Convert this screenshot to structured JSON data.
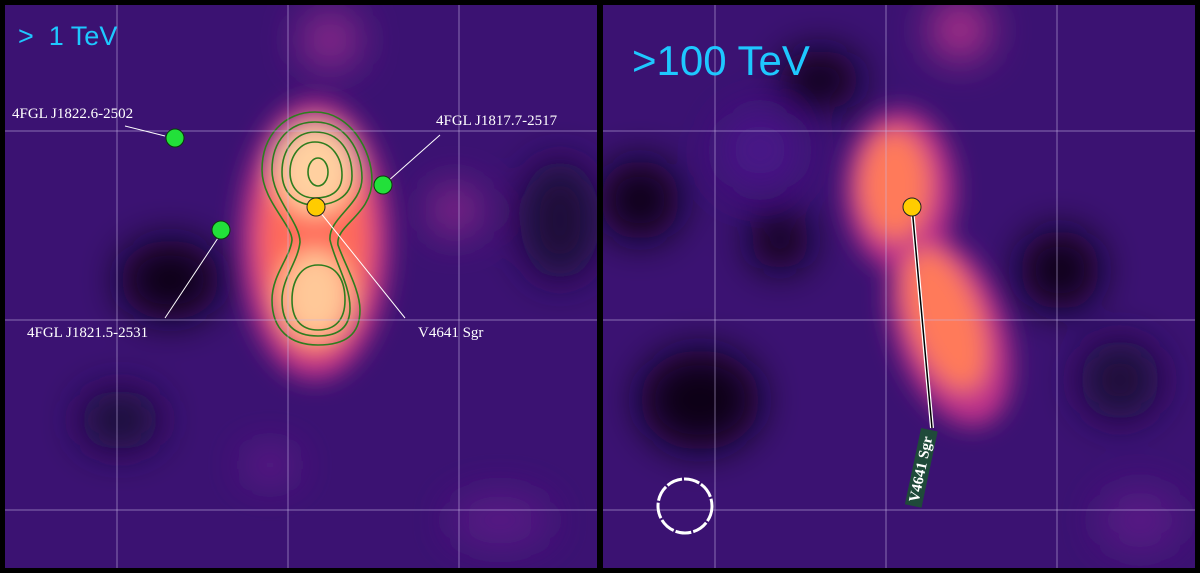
{
  "panels": [
    {
      "title": ">  1 TeV",
      "sources": [
        {
          "label": "4FGL J1822.6-2502",
          "type": "Fermi source",
          "color": "#22e03a"
        },
        {
          "label": "4FGL J1817.7-2517",
          "type": "Fermi source",
          "color": "#22e03a"
        },
        {
          "label": "4FGL J1821.5-2531",
          "type": "Fermi source",
          "color": "#22e03a"
        },
        {
          "label": "V4641 Sgr",
          "type": "binary",
          "color": "#ffcc00"
        }
      ]
    },
    {
      "title": ">100 TeV",
      "sources": [
        {
          "label": "V4641 Sgr",
          "type": "binary",
          "color": "#ffcc00"
        }
      ]
    }
  ],
  "colors": {
    "background": "#3a0f6e",
    "contour": "#2e7d1e",
    "title": "#1ec8ff",
    "grid": "#b8a8d8"
  }
}
